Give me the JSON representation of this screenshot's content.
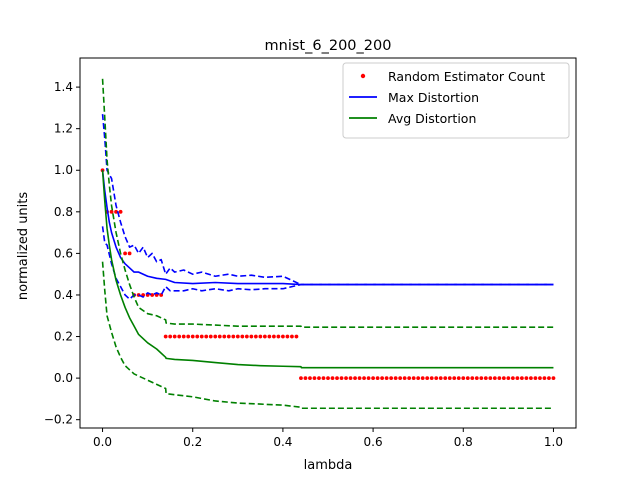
{
  "chart_data": {
    "type": "line",
    "title": "mnist_6_200_200",
    "xlabel": "lambda",
    "ylabel": "normalized units",
    "xlim": [
      -0.05,
      1.05
    ],
    "ylim": [
      -0.24,
      1.54
    ],
    "xticks": [
      {
        "value": 0.0,
        "label": "0.0"
      },
      {
        "value": 0.2,
        "label": "0.2"
      },
      {
        "value": 0.4,
        "label": "0.4"
      },
      {
        "value": 0.6,
        "label": "0.6"
      },
      {
        "value": 0.8,
        "label": "0.8"
      },
      {
        "value": 1.0,
        "label": "1.0"
      }
    ],
    "yticks": [
      {
        "value": -0.2,
        "label": "−0.2"
      },
      {
        "value": 0.0,
        "label": "0.0"
      },
      {
        "value": 0.2,
        "label": "0.2"
      },
      {
        "value": 0.4,
        "label": "0.4"
      },
      {
        "value": 0.6,
        "label": "0.6"
      },
      {
        "value": 0.8,
        "label": "0.8"
      },
      {
        "value": 1.0,
        "label": "1.0"
      },
      {
        "value": 1.2,
        "label": "1.2"
      },
      {
        "value": 1.4,
        "label": "1.4"
      }
    ],
    "grid": false,
    "legend_position": "top-right",
    "series": [
      {
        "name": "Random Estimator Count",
        "kind": "points",
        "color": "#ff0000",
        "x": [
          0.0,
          0.01,
          0.02,
          0.03,
          0.04,
          0.05,
          0.06,
          0.07,
          0.08,
          0.09,
          0.1,
          0.11,
          0.12,
          0.13,
          0.14,
          0.15,
          0.16,
          0.17,
          0.18,
          0.19,
          0.2,
          0.21,
          0.22,
          0.23,
          0.24,
          0.25,
          0.26,
          0.27,
          0.28,
          0.29,
          0.3,
          0.31,
          0.32,
          0.33,
          0.34,
          0.35,
          0.36,
          0.37,
          0.38,
          0.39,
          0.4,
          0.41,
          0.42,
          0.43,
          0.44,
          0.45,
          0.46,
          0.47,
          0.48,
          0.49,
          0.5,
          0.51,
          0.52,
          0.53,
          0.54,
          0.55,
          0.56,
          0.57,
          0.58,
          0.59,
          0.6,
          0.61,
          0.62,
          0.63,
          0.64,
          0.65,
          0.66,
          0.67,
          0.68,
          0.69,
          0.7,
          0.71,
          0.72,
          0.73,
          0.74,
          0.75,
          0.76,
          0.77,
          0.78,
          0.79,
          0.8,
          0.81,
          0.82,
          0.83,
          0.84,
          0.85,
          0.86,
          0.87,
          0.88,
          0.89,
          0.9,
          0.91,
          0.92,
          0.93,
          0.94,
          0.95,
          0.96,
          0.97,
          0.98,
          0.99,
          1.0
        ],
        "y": [
          1.0,
          0.8,
          0.8,
          0.8,
          0.8,
          0.6,
          0.6,
          0.4,
          0.4,
          0.4,
          0.4,
          0.4,
          0.4,
          0.4,
          0.2,
          0.2,
          0.2,
          0.2,
          0.2,
          0.2,
          0.2,
          0.2,
          0.2,
          0.2,
          0.2,
          0.2,
          0.2,
          0.2,
          0.2,
          0.2,
          0.2,
          0.2,
          0.2,
          0.2,
          0.2,
          0.2,
          0.2,
          0.2,
          0.2,
          0.2,
          0.2,
          0.2,
          0.2,
          0.2,
          0.0,
          0.0,
          0.0,
          0.0,
          0.0,
          0.0,
          0.0,
          0.0,
          0.0,
          0.0,
          0.0,
          0.0,
          0.0,
          0.0,
          0.0,
          0.0,
          0.0,
          0.0,
          0.0,
          0.0,
          0.0,
          0.0,
          0.0,
          0.0,
          0.0,
          0.0,
          0.0,
          0.0,
          0.0,
          0.0,
          0.0,
          0.0,
          0.0,
          0.0,
          0.0,
          0.0,
          0.0,
          0.0,
          0.0,
          0.0,
          0.0,
          0.0,
          0.0,
          0.0,
          0.0,
          0.0,
          0.0,
          0.0,
          0.0,
          0.0,
          0.0,
          0.0,
          0.0,
          0.0,
          0.0,
          0.0,
          0.0
        ]
      },
      {
        "name": "Max Distortion",
        "kind": "line",
        "color": "#0000ff",
        "x": [
          0.0,
          0.005,
          0.01,
          0.015,
          0.02,
          0.03,
          0.04,
          0.05,
          0.06,
          0.07,
          0.08,
          0.1,
          0.12,
          0.14,
          0.16,
          0.2,
          0.25,
          0.3,
          0.35,
          0.4,
          0.44,
          0.5,
          0.6,
          0.7,
          0.8,
          0.9,
          1.0
        ],
        "y": [
          1.0,
          0.9,
          0.82,
          0.75,
          0.7,
          0.63,
          0.58,
          0.55,
          0.53,
          0.51,
          0.51,
          0.49,
          0.48,
          0.475,
          0.46,
          0.455,
          0.46,
          0.455,
          0.455,
          0.455,
          0.45,
          0.45,
          0.45,
          0.45,
          0.45,
          0.45,
          0.45
        ]
      },
      {
        "kind": "band",
        "color": "#0000ff",
        "x": [
          0.0,
          0.005,
          0.01,
          0.02,
          0.03,
          0.04,
          0.05,
          0.06,
          0.07,
          0.08,
          0.09,
          0.1,
          0.11,
          0.12,
          0.13,
          0.14,
          0.15,
          0.16,
          0.18,
          0.2,
          0.22,
          0.25,
          0.28,
          0.3,
          0.33,
          0.36,
          0.4,
          0.44,
          0.5,
          0.6,
          0.7,
          0.8,
          0.9,
          1.0
        ],
        "y": [
          1.27,
          1.15,
          1.0,
          0.96,
          0.83,
          0.75,
          0.68,
          0.63,
          0.64,
          0.6,
          0.63,
          0.58,
          0.6,
          0.56,
          0.57,
          0.5,
          0.53,
          0.51,
          0.52,
          0.5,
          0.51,
          0.49,
          0.5,
          0.49,
          0.495,
          0.485,
          0.49,
          0.45,
          0.45,
          0.45,
          0.45,
          0.45,
          0.45,
          0.45
        ]
      },
      {
        "kind": "band",
        "color": "#0000ff",
        "x": [
          0.0,
          0.005,
          0.01,
          0.02,
          0.03,
          0.04,
          0.05,
          0.06,
          0.07,
          0.08,
          0.09,
          0.1,
          0.11,
          0.12,
          0.13,
          0.14,
          0.15,
          0.16,
          0.18,
          0.2,
          0.22,
          0.25,
          0.28,
          0.3,
          0.33,
          0.36,
          0.4,
          0.44,
          0.5,
          0.6,
          0.7,
          0.8,
          0.9,
          1.0
        ],
        "y": [
          0.73,
          0.65,
          0.64,
          0.55,
          0.48,
          0.44,
          0.4,
          0.38,
          0.4,
          0.4,
          0.39,
          0.41,
          0.4,
          0.41,
          0.4,
          0.44,
          0.42,
          0.42,
          0.42,
          0.43,
          0.42,
          0.43,
          0.42,
          0.43,
          0.425,
          0.43,
          0.43,
          0.45,
          0.45,
          0.45,
          0.45,
          0.45,
          0.45,
          0.45
        ]
      },
      {
        "name": "Avg Distortion",
        "kind": "line",
        "color": "#008000",
        "x": [
          0.0,
          0.005,
          0.01,
          0.015,
          0.02,
          0.03,
          0.04,
          0.05,
          0.06,
          0.07,
          0.08,
          0.1,
          0.12,
          0.14,
          0.141,
          0.16,
          0.2,
          0.25,
          0.3,
          0.35,
          0.4,
          0.44,
          0.441,
          0.5,
          0.6,
          0.7,
          0.8,
          0.9,
          1.0
        ],
        "y": [
          1.0,
          0.85,
          0.72,
          0.64,
          0.57,
          0.47,
          0.4,
          0.34,
          0.29,
          0.25,
          0.21,
          0.17,
          0.14,
          0.1,
          0.095,
          0.09,
          0.085,
          0.075,
          0.065,
          0.06,
          0.057,
          0.055,
          0.05,
          0.05,
          0.05,
          0.05,
          0.05,
          0.05,
          0.05
        ]
      },
      {
        "kind": "band",
        "color": "#008000",
        "x": [
          0.0,
          0.005,
          0.01,
          0.015,
          0.02,
          0.03,
          0.04,
          0.05,
          0.06,
          0.07,
          0.08,
          0.1,
          0.12,
          0.14,
          0.141,
          0.16,
          0.2,
          0.25,
          0.3,
          0.35,
          0.4,
          0.44,
          0.441,
          0.5,
          0.6,
          0.7,
          0.8,
          0.9,
          1.0
        ],
        "y": [
          1.44,
          1.25,
          1.05,
          0.93,
          0.83,
          0.7,
          0.6,
          0.52,
          0.45,
          0.39,
          0.34,
          0.31,
          0.3,
          0.28,
          0.265,
          0.26,
          0.26,
          0.255,
          0.25,
          0.25,
          0.25,
          0.25,
          0.245,
          0.245,
          0.245,
          0.245,
          0.245,
          0.245,
          0.245
        ]
      },
      {
        "kind": "band",
        "color": "#008000",
        "x": [
          0.0,
          0.005,
          0.01,
          0.015,
          0.02,
          0.03,
          0.04,
          0.05,
          0.06,
          0.07,
          0.08,
          0.1,
          0.12,
          0.14,
          0.141,
          0.16,
          0.2,
          0.25,
          0.3,
          0.35,
          0.4,
          0.44,
          0.441,
          0.5,
          0.6,
          0.7,
          0.8,
          0.9,
          1.0
        ],
        "y": [
          0.56,
          0.42,
          0.3,
          0.26,
          0.22,
          0.15,
          0.1,
          0.06,
          0.04,
          0.02,
          0.01,
          -0.01,
          -0.03,
          -0.05,
          -0.075,
          -0.08,
          -0.09,
          -0.11,
          -0.12,
          -0.125,
          -0.13,
          -0.14,
          -0.145,
          -0.145,
          -0.145,
          -0.145,
          -0.145,
          -0.145,
          -0.145
        ]
      }
    ]
  }
}
